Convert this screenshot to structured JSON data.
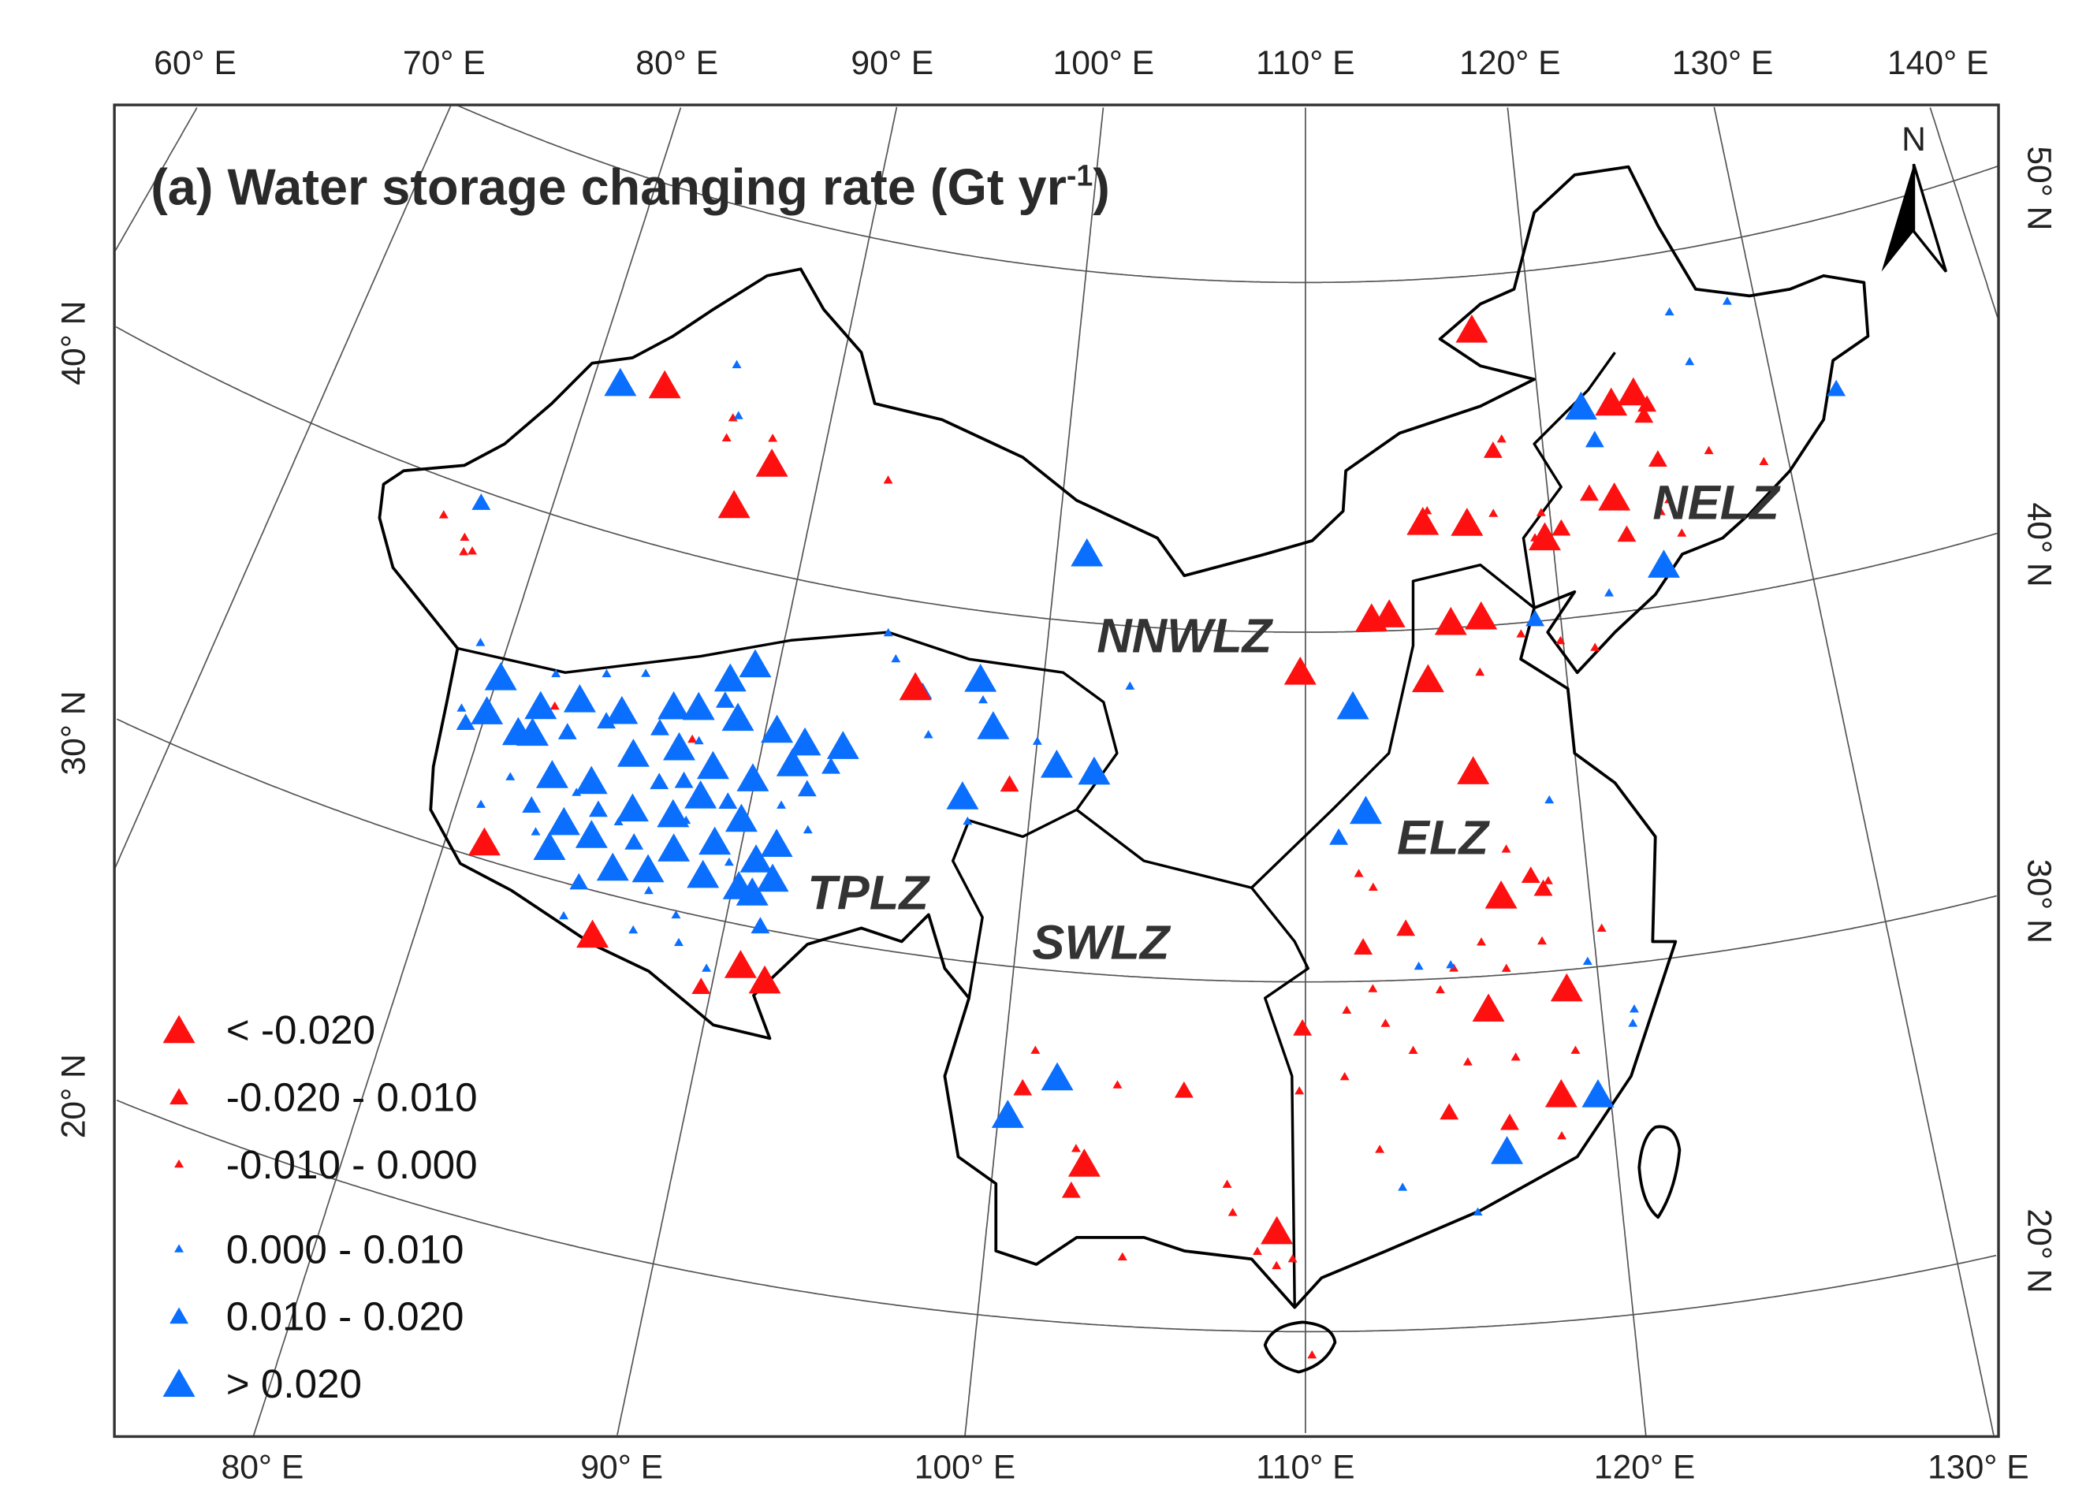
{
  "title": {
    "main": "(a) Water storage changing rate (Gt yr",
    "sup": "-1",
    "close": ")"
  },
  "axes": {
    "top": [
      "60° E",
      "70° E",
      "80° E",
      "90° E",
      "100° E",
      "110° E",
      "120° E",
      "130° E",
      "140° E"
    ],
    "bottom": [
      "80° E",
      "90° E",
      "100° E",
      "110° E",
      "120° E",
      "130° E"
    ],
    "left": [
      "40° N",
      "30° N",
      "20° N"
    ],
    "right": [
      "50° N",
      "40° N",
      "30° N",
      "20° N"
    ]
  },
  "north_arrow": {
    "label": "N"
  },
  "zones": [
    {
      "label": "NNWLZ"
    },
    {
      "label": "TPLZ"
    },
    {
      "label": "SWLZ"
    },
    {
      "label": "ELZ"
    },
    {
      "label": "NELZ"
    }
  ],
  "colors": {
    "negative": "#ff1010",
    "positive": "#0a6eff"
  },
  "legend": [
    {
      "label": "< -0.020",
      "class": "R3"
    },
    {
      "label": "-0.020  - 0.010",
      "class": "R2"
    },
    {
      "label": "-0.010 - 0.000",
      "class": "R1"
    },
    {
      "label": "0.000 - 0.010",
      "class": "B1"
    },
    {
      "label": "0.010 - 0.020",
      "class": "B2"
    },
    {
      "label": "> 0.020",
      "class": "B3"
    }
  ],
  "stations": {
    "R3": [
      [
        82.9,
        44.5
      ],
      [
        88.0,
        43.1
      ],
      [
        86.9,
        41.7
      ],
      [
        117.4,
        48.5
      ],
      [
        114.8,
        43.1
      ],
      [
        116.6,
        43.0
      ],
      [
        119.7,
        42.4
      ],
      [
        122.7,
        43.3
      ],
      [
        124.1,
        46.2
      ],
      [
        123.1,
        46.0
      ],
      [
        112.6,
        40.4
      ],
      [
        113.3,
        40.5
      ],
      [
        115.7,
        40.2
      ],
      [
        116.9,
        40.3
      ],
      [
        109.8,
        38.9
      ],
      [
        114.7,
        38.6
      ],
      [
        116.2,
        35.9
      ],
      [
        116.9,
        32.3
      ],
      [
        116.2,
        29.1
      ],
      [
        118.9,
        29.5
      ],
      [
        118.4,
        26.5
      ],
      [
        102.9,
        24.6
      ],
      [
        109.1,
        22.9
      ],
      [
        95.2,
        37.6
      ],
      [
        81.3,
        30.5
      ],
      [
        85.7,
        28.8
      ],
      [
        90.8,
        28.9
      ],
      [
        91.7,
        28.6
      ]
    ],
    "R2": [
      [
        117.9,
        45.0
      ],
      [
        120.4,
        42.6
      ],
      [
        123.0,
        42.2
      ],
      [
        124.7,
        44.2
      ],
      [
        112.0,
        31.0
      ],
      [
        113.5,
        31.5
      ],
      [
        118.0,
        32.8
      ],
      [
        118.4,
        32.4
      ],
      [
        100.7,
        26.6
      ],
      [
        106.0,
        26.85
      ],
      [
        102.55,
        23.8
      ],
      [
        89.65,
        28.06
      ],
      [
        99.15,
        35.2
      ],
      [
        109.9,
        28.7
      ],
      [
        116.65,
        25.8
      ],
      [
        124.4,
        45.5
      ],
      [
        124.6,
        45.8
      ],
      [
        121.7,
        43.5
      ],
      [
        114.7,
        26.2
      ]
    ],
    "R1": [
      [
        117.2,
        33.6
      ],
      [
        118.6,
        32.6
      ],
      [
        116.1,
        31.0
      ],
      [
        115.1,
        30.3
      ],
      [
        112.3,
        29.8
      ],
      [
        111.4,
        29.2
      ],
      [
        112.7,
        28.8
      ],
      [
        113.6,
        28.0
      ],
      [
        115.4,
        27.6
      ],
      [
        116.9,
        30.2
      ],
      [
        117.0,
        27.65
      ],
      [
        118.2,
        30.9
      ],
      [
        114.6,
        29.7
      ],
      [
        119.0,
        27.7
      ],
      [
        120.3,
        31.1
      ],
      [
        111.3,
        27.3
      ],
      [
        109.8,
        26.9
      ],
      [
        107.5,
        24.2
      ],
      [
        107.7,
        23.4
      ],
      [
        108.5,
        22.3
      ],
      [
        109.6,
        22.1
      ],
      [
        109.1,
        21.9
      ],
      [
        112.4,
        25.2
      ],
      [
        118.3,
        25.3
      ],
      [
        103.8,
        26.9
      ],
      [
        101.0,
        27.7
      ],
      [
        102.6,
        25.0
      ],
      [
        111.9,
        33.1
      ],
      [
        112.4,
        32.7
      ],
      [
        116.7,
        38.7
      ],
      [
        118.4,
        39.7
      ],
      [
        121.2,
        39.1
      ],
      [
        119.9,
        39.4
      ],
      [
        117.7,
        43.2
      ],
      [
        118.3,
        45.3
      ],
      [
        126.85,
        44.2
      ],
      [
        129.0,
        43.6
      ],
      [
        124.9,
        43.0
      ],
      [
        125.2,
        42.0
      ],
      [
        124.5,
        42.7
      ],
      [
        119.65,
        43.1
      ],
      [
        119.3,
        42.4
      ],
      [
        86.0,
        44.1
      ],
      [
        85.95,
        43.5
      ],
      [
        87.8,
        43.8
      ],
      [
        92.8,
        43.3
      ],
      [
        76.1,
        39.0
      ],
      [
        77.15,
        38.6
      ],
      [
        77.6,
        38.3
      ],
      [
        77.3,
        38.2
      ],
      [
        82.3,
        34.8
      ],
      [
        87.45,
        34.9
      ],
      [
        115.0,
        43.4
      ],
      [
        104.3,
        22.0
      ],
      [
        110.2,
        19.35
      ]
    ],
    "B1": [
      [
        79.1,
        33.95
      ],
      [
        81.5,
        32.5
      ],
      [
        82.9,
        31.2
      ],
      [
        83.9,
        32.6
      ],
      [
        85.6,
        32.1
      ],
      [
        87.2,
        30.4
      ],
      [
        87.9,
        32.6
      ],
      [
        89.7,
        31.7
      ],
      [
        91.1,
        33.6
      ],
      [
        92.2,
        33.05
      ],
      [
        80.8,
        31.5
      ],
      [
        84.6,
        29.1
      ],
      [
        87.0,
        29.2
      ],
      [
        88.3,
        29.9
      ],
      [
        87.7,
        34.9
      ],
      [
        83.8,
        36.1
      ],
      [
        82.0,
        35.7
      ],
      [
        85.2,
        36.4
      ],
      [
        79.0,
        35.9
      ],
      [
        93.85,
        39.0
      ],
      [
        94.3,
        38.3
      ],
      [
        103.3,
        38.3
      ],
      [
        100.0,
        36.5
      ],
      [
        97.8,
        34.0
      ],
      [
        88.6,
        29.15
      ],
      [
        89.7,
        28.6
      ],
      [
        97.8,
        37.5
      ],
      [
        95.95,
        36.3
      ],
      [
        126.2,
        48.3
      ],
      [
        128.8,
        48.3
      ],
      [
        126.7,
        46.8
      ],
      [
        122.0,
        40.6
      ],
      [
        121.0,
        28.3
      ],
      [
        113.9,
        30.4
      ],
      [
        115.0,
        30.4
      ],
      [
        119.7,
        30.2
      ],
      [
        118.9,
        34.9
      ],
      [
        113.1,
        24.1
      ],
      [
        115.45,
        23.3
      ],
      [
        121.1,
        28.7
      ],
      [
        85.6,
        45.6
      ],
      [
        86.2,
        44.2
      ]
    ],
    "B2": [
      [
        79.4,
        33.6
      ],
      [
        83.0,
        34.2
      ],
      [
        84.25,
        34.8
      ],
      [
        86.2,
        35.0
      ],
      [
        88.3,
        36.2
      ],
      [
        87.5,
        33.7
      ],
      [
        84.8,
        32.3
      ],
      [
        86.3,
        31.65
      ],
      [
        89.2,
        33.4
      ],
      [
        91.9,
        34.2
      ],
      [
        84.8,
        30.15
      ],
      [
        91.2,
        30.1
      ],
      [
        92.6,
        34.96
      ],
      [
        82.5,
        31.9
      ],
      [
        86.65,
        33.5
      ],
      [
        77.3,
        39.7
      ],
      [
        119.0,
        40.1
      ],
      [
        111.2,
        34.15
      ],
      [
        95.5,
        37.5
      ],
      [
        132.6,
        45.2
      ],
      [
        122.2,
        45.0
      ]
    ],
    "B3": [
      [
        81.1,
        44.2
      ],
      [
        101.2,
        42.0
      ],
      [
        121.8,
        46.0
      ],
      [
        124.3,
        41.2
      ],
      [
        111.8,
        37.9
      ],
      [
        112.2,
        34.9
      ],
      [
        97.6,
        38.1
      ],
      [
        98.3,
        36.8
      ],
      [
        100.8,
        35.9
      ],
      [
        102.2,
        35.8
      ],
      [
        97.5,
        34.7
      ],
      [
        116.5,
        25.0
      ],
      [
        119.6,
        26.4
      ],
      [
        101.8,
        27.0
      ],
      [
        100.3,
        25.8
      ],
      [
        80.1,
        35.15
      ],
      [
        80.0,
        34.1
      ],
      [
        81.8,
        34.7
      ],
      [
        81.8,
        33.9
      ],
      [
        83.1,
        35.2
      ],
      [
        84.7,
        35.2
      ],
      [
        86.5,
        35.7
      ],
      [
        87.4,
        35.85
      ],
      [
        88.3,
        36.85
      ],
      [
        89.1,
        37.4
      ],
      [
        88.9,
        35.8
      ],
      [
        90.4,
        35.7
      ],
      [
        91.5,
        35.5
      ],
      [
        92.9,
        35.6
      ],
      [
        82.9,
        32.9
      ],
      [
        83.75,
        31.7
      ],
      [
        84.8,
        31.55
      ],
      [
        85.96,
        32.58
      ],
      [
        87.4,
        32.7
      ],
      [
        88.2,
        33.4
      ],
      [
        89.05,
        32.2
      ],
      [
        89.8,
        33.0
      ],
      [
        90.6,
        31.95
      ],
      [
        91.3,
        31.5
      ],
      [
        87.0,
        31.0
      ],
      [
        88.9,
        31.2
      ],
      [
        90.2,
        31.1
      ],
      [
        85.8,
        30.8
      ],
      [
        83.5,
        30.9
      ],
      [
        81.3,
        33.8
      ],
      [
        87.05,
        34.6
      ],
      [
        88.4,
        34.3
      ],
      [
        89.9,
        34.2
      ],
      [
        91.2,
        34.85
      ],
      [
        85.5,
        34.1
      ],
      [
        84.3,
        33.04
      ],
      [
        87.7,
        31.75
      ],
      [
        91.2,
        32.5
      ],
      [
        90.7,
        31.0
      ]
    ]
  }
}
